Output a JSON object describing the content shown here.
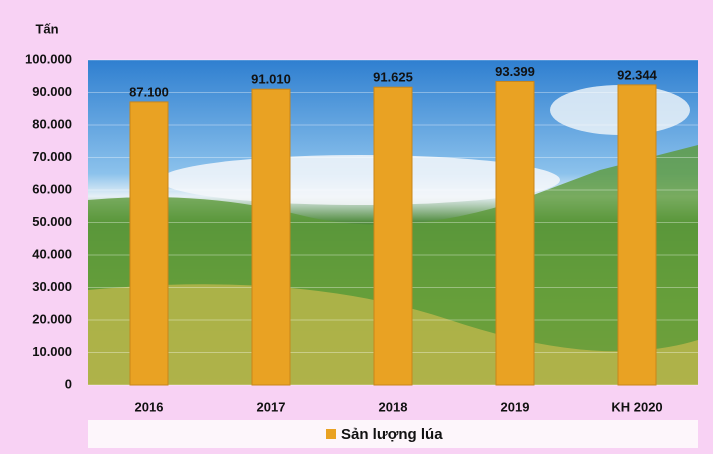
{
  "chart_data": {
    "type": "bar",
    "y_label": "Tấn",
    "categories": [
      "2016",
      "2017",
      "2018",
      "2019",
      "KH 2020"
    ],
    "series": [
      {
        "name": "Sản lượng lúa",
        "color": "#e9a223",
        "values": [
          87100,
          91010,
          91625,
          93399,
          92344
        ],
        "value_labels": [
          "87.100",
          "91.010",
          "91.625",
          "93.399",
          "92.344"
        ]
      }
    ],
    "ylim": [
      0,
      100000
    ],
    "yticks": [
      0,
      {
        "value": 10000,
        "label": "10.000"
      },
      {
        "value": 20000,
        "label": "20.000"
      },
      {
        "value": 30000,
        "label": "30.000"
      },
      {
        "value": 40000,
        "label": "40.000"
      },
      {
        "value": 50000,
        "label": "50.000"
      },
      {
        "value": 60000,
        "label": "60.000"
      },
      {
        "value": 70000,
        "label": "70.000"
      },
      {
        "value": 80000,
        "label": "80.000"
      },
      {
        "value": 90000,
        "label": "90.000"
      },
      {
        "value": 100000,
        "label": "100.000"
      }
    ],
    "grid": true,
    "legend": "bottom"
  }
}
